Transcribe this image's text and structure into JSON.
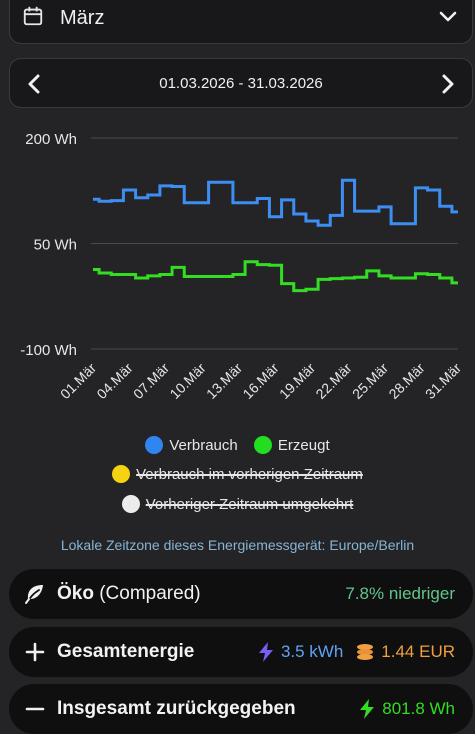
{
  "month_select": {
    "label": "März",
    "icon": "calendar-icon"
  },
  "range_nav": {
    "range": "01.03.2026 - 31.03.2026"
  },
  "chart_data": {
    "type": "line",
    "ylim": [
      -100,
      200
    ],
    "y_ticks": [
      200,
      50,
      -100
    ],
    "y_tick_labels": [
      "200 Wh",
      "50 Wh",
      "-100 Wh"
    ],
    "x_tick_labels": [
      "01.Mär",
      "04.Mär",
      "07.Mär",
      "10.Mär",
      "13.Mär",
      "16.Mär",
      "19.Mär",
      "22.Mär",
      "25.Mär",
      "28.Mär",
      "31.Mär"
    ],
    "x": [
      1,
      2,
      3,
      4,
      5,
      6,
      7,
      8,
      9,
      10,
      11,
      12,
      13,
      14,
      15,
      16,
      17,
      18,
      19,
      20,
      21,
      22,
      23,
      24,
      25,
      26,
      27,
      28,
      29,
      30,
      31
    ],
    "grid": true,
    "step": true,
    "series": [
      {
        "name": "Verbrauch",
        "color": "#3d8ef2",
        "values": [
          113,
          110,
          111,
          126,
          115,
          119,
          132,
          131,
          108,
          108,
          137,
          137,
          108,
          108,
          114,
          88,
          112,
          92,
          82,
          76,
          90,
          140,
          96,
          96,
          102,
          78,
          78,
          129,
          126,
          103,
          95
        ]
      },
      {
        "name": "Erzeugt",
        "color": "#33dd22",
        "values": [
          13,
          8,
          6,
          6,
          1,
          4,
          6,
          16,
          3,
          3,
          3,
          3,
          6,
          24,
          20,
          19,
          -7,
          -17,
          -15,
          -1,
          0,
          1,
          2,
          11,
          4,
          1,
          1,
          7,
          6,
          1,
          -6
        ]
      }
    ]
  },
  "legend": {
    "verbrauch": "Verbrauch",
    "erzeugt": "Erzeugt",
    "prev": "Verbrauch im vorherigen Zeitraum",
    "reversed": "Vorheriger Zeitraum umgekehrt"
  },
  "timezone": "Lokale Zeitzone dieses Energiemessgerät: Europe/Berlin",
  "rows": {
    "oeko": {
      "title_bold": "Öko",
      "title_rest": "(Compared)",
      "value": "7.8% niedriger",
      "value_color": "#63c48c"
    },
    "gesamt": {
      "title": "Gesamtenergie",
      "energy": "3.5 kWh",
      "cost": "1.44 EUR"
    },
    "zurueck": {
      "title": "Insgesamt zurückgegeben",
      "energy": "801.8 Wh"
    }
  }
}
